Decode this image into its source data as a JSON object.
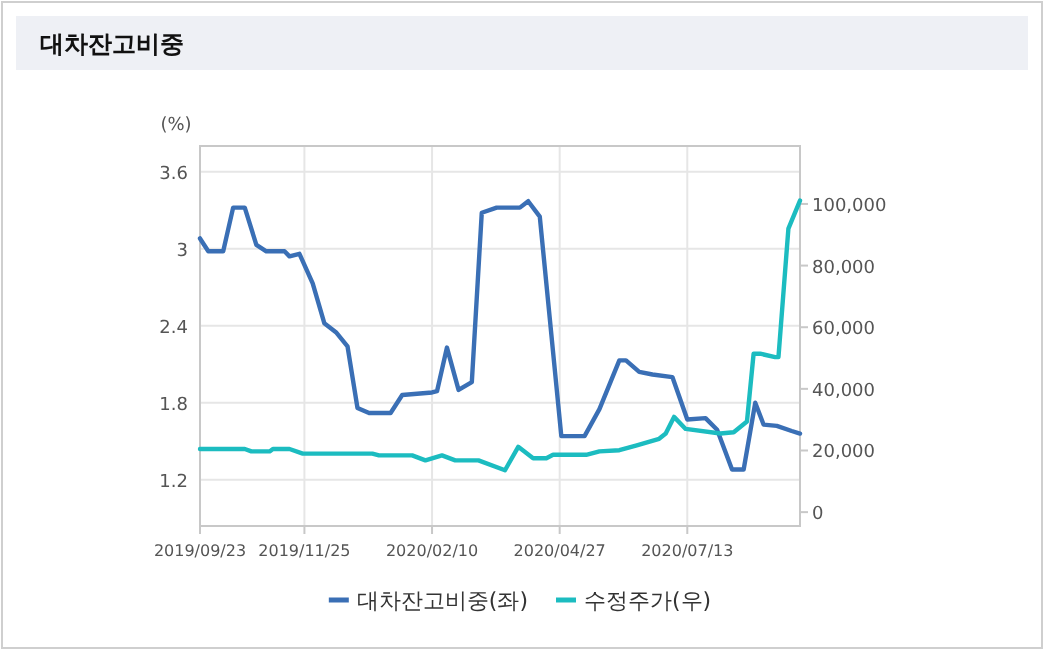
{
  "chart_data": {
    "type": "line",
    "title": "대차잔고비중",
    "ylabel": "(%)",
    "grid": true,
    "legend": "bottom",
    "xlim": [
      "2019-09-23",
      "2020-09-19"
    ],
    "xticks": [
      {
        "value": "2019-09-23",
        "label": "2019/09/23"
      },
      {
        "value": "2019-11-25",
        "label": "2019/11/25"
      },
      {
        "value": "2020-02-10",
        "label": "2020/02/10"
      },
      {
        "value": "2020-04-27",
        "label": "2020/04/27"
      },
      {
        "value": "2020-07-13",
        "label": "2020/07/13"
      }
    ],
    "ylim": [
      0.84,
      3.8
    ],
    "yticks": [
      1.2,
      1.8,
      2.4,
      3,
      3.6
    ],
    "y2lim": [
      -4500,
      118800
    ],
    "y2ticks": [
      0,
      {
        "value": 20000,
        "label": "20,000"
      },
      {
        "value": 40000,
        "label": "40,000"
      },
      {
        "value": 60000,
        "label": "60,000"
      },
      {
        "value": 80000,
        "label": "80,000"
      },
      {
        "value": 100000,
        "label": "100,000"
      }
    ],
    "series": [
      {
        "name": "대차잔고비중(좌)",
        "color": "#3a6fb5",
        "x": [
          "2019-09-23",
          "2019-09-28",
          "2019-10-07",
          "2019-10-13",
          "2019-10-20",
          "2019-10-27",
          "2019-11-02",
          "2019-11-13",
          "2019-11-16",
          "2019-11-22",
          "2019-11-30",
          "2019-12-07",
          "2019-12-14",
          "2019-12-21",
          "2019-12-27",
          "2020-01-03",
          "2020-01-16",
          "2020-01-23",
          "2020-02-10",
          "2020-02-13",
          "2020-02-19",
          "2020-02-26",
          "2020-03-05",
          "2020-03-11",
          "2020-03-20",
          "2020-04-03",
          "2020-04-08",
          "2020-04-15",
          "2020-04-28",
          "2020-05-12",
          "2020-05-21",
          "2020-06-02",
          "2020-06-06",
          "2020-06-14",
          "2020-06-22",
          "2020-07-04",
          "2020-07-13",
          "2020-07-24",
          "2020-07-31",
          "2020-08-09",
          "2020-08-16",
          "2020-08-23",
          "2020-08-28",
          "2020-09-05",
          "2020-09-14",
          "2020-09-19"
        ],
        "values": [
          3.08,
          2.98,
          2.98,
          3.32,
          3.32,
          3.03,
          2.98,
          2.98,
          2.94,
          2.96,
          2.73,
          2.42,
          2.35,
          2.24,
          1.76,
          1.72,
          1.72,
          1.86,
          1.88,
          1.89,
          2.23,
          1.9,
          1.96,
          3.28,
          3.32,
          3.32,
          3.37,
          3.25,
          1.54,
          1.54,
          1.75,
          2.13,
          2.13,
          2.04,
          2.02,
          2.0,
          1.67,
          1.68,
          1.59,
          1.28,
          1.28,
          1.8,
          1.63,
          1.62,
          1.58,
          1.56
        ]
      },
      {
        "name": "수정주가(우)",
        "color": "#1cbcc0",
        "axis": "y2",
        "x": [
          "2019-09-23",
          "2019-10-20",
          "2019-10-24",
          "2019-11-04",
          "2019-11-06",
          "2019-11-16",
          "2019-11-24",
          "2020-01-05",
          "2020-01-09",
          "2020-01-29",
          "2020-02-06",
          "2020-02-16",
          "2020-02-24",
          "2020-03-09",
          "2020-03-25",
          "2020-04-02",
          "2020-04-11",
          "2020-04-19",
          "2020-04-23",
          "2020-05-13",
          "2020-05-21",
          "2020-06-02",
          "2020-06-12",
          "2020-06-26",
          "2020-06-30",
          "2020-07-05",
          "2020-07-12",
          "2020-08-02",
          "2020-08-10",
          "2020-08-18",
          "2020-08-22",
          "2020-08-26",
          "2020-09-04",
          "2020-09-06",
          "2020-09-12",
          "2020-09-19"
        ],
        "values": [
          20500,
          20500,
          19700,
          19700,
          20500,
          20500,
          19000,
          19000,
          18400,
          18400,
          16800,
          18400,
          16800,
          16800,
          13600,
          21200,
          17500,
          17500,
          18600,
          18600,
          19700,
          20100,
          21600,
          23800,
          25500,
          30900,
          27000,
          25500,
          25900,
          29400,
          51400,
          51400,
          50300,
          50300,
          92000,
          101100
        ]
      }
    ]
  }
}
